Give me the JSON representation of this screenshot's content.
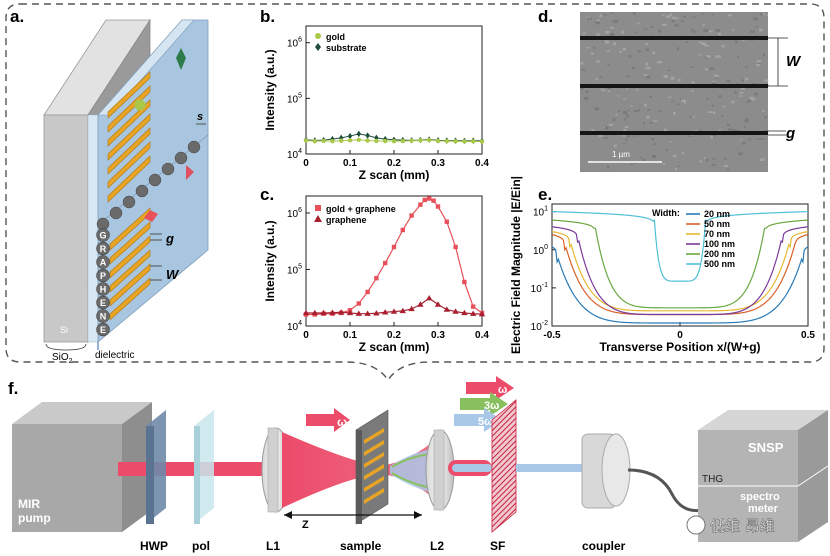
{
  "panels": {
    "a": "a.",
    "b": "b.",
    "c": "c.",
    "d": "d.",
    "e": "e.",
    "f": "f."
  },
  "panel_a": {
    "letters": [
      "G",
      "R",
      "A",
      "P",
      "H",
      "E",
      "N",
      "E"
    ],
    "label_s": "s",
    "label_g": "g",
    "label_w": "W",
    "label_si": "Si",
    "label_sio2": "SiO",
    "label_sio2_sub": "2",
    "label_dielectric": "dielectric",
    "colors": {
      "gold": "#e8a424",
      "slab": "#a9c6e0",
      "gray": "#bdbdbd"
    }
  },
  "panel_d": {
    "scale_bar": "1 µm",
    "label_w": "W",
    "label_g": "g"
  },
  "panel_f": {
    "labels": {
      "mir_pump": [
        "MIR",
        "pump"
      ],
      "hwp": "HWP",
      "pol": "pol",
      "l1": "L1",
      "sample": "sample",
      "l2": "L2",
      "sf": "SF",
      "coupler": "coupler",
      "snsp": "SNSP",
      "thg": "THG",
      "spectro": [
        "spectro",
        "meter"
      ],
      "z": "Z",
      "omega_in": "ω",
      "omega_out": "ω",
      "three_omega": "3ω",
      "five_omega": "5ω",
      "watermark": "低维 昂维"
    },
    "colors": {
      "beam": "#ec4b6a",
      "thg": "#88c060",
      "fifth": "#a9c8e8"
    }
  },
  "chart_data": [
    {
      "id": "b",
      "type": "scatter",
      "title": "",
      "xlabel": "Z scan (mm)",
      "ylabel": "Intensity (a.u.)",
      "xlim": [
        0,
        0.4
      ],
      "ylim_log10": [
        4,
        6.3
      ],
      "xticks": [
        "0",
        "0.1",
        "0.2",
        "0.3",
        "0.4"
      ],
      "yticks": [
        {
          "base": "10",
          "exp": "4",
          "v": 4
        },
        {
          "base": "10",
          "exp": "5",
          "v": 5
        },
        {
          "base": "10",
          "exp": "6",
          "v": 6
        }
      ],
      "legend": [
        "gold",
        "substrate"
      ],
      "series": [
        {
          "name": "substrate",
          "color": "#1f4f3a",
          "marker": "diamond",
          "x": [
            0.0,
            0.02,
            0.04,
            0.06,
            0.08,
            0.1,
            0.12,
            0.14,
            0.16,
            0.18,
            0.2,
            0.22,
            0.24,
            0.26,
            0.28,
            0.3,
            0.32,
            0.34,
            0.36,
            0.38,
            0.4
          ],
          "y": [
            18000,
            17500,
            17800,
            18500,
            19500,
            21000,
            23000,
            21500,
            19500,
            18500,
            18000,
            17800,
            17600,
            17800,
            18200,
            17600,
            17400,
            17300,
            17200,
            17300,
            17200
          ]
        },
        {
          "name": "gold",
          "color": "#a9c84a",
          "marker": "circle",
          "x": [
            0.0,
            0.02,
            0.04,
            0.06,
            0.08,
            0.1,
            0.12,
            0.14,
            0.16,
            0.18,
            0.2,
            0.22,
            0.24,
            0.26,
            0.28,
            0.3,
            0.32,
            0.34,
            0.36,
            0.38,
            0.4
          ],
          "y": [
            17500,
            17000,
            17200,
            17000,
            17300,
            17600,
            18000,
            17400,
            17200,
            17100,
            17000,
            17100,
            17300,
            17500,
            17800,
            17200,
            17000,
            16900,
            16800,
            16900,
            16700
          ]
        }
      ]
    },
    {
      "id": "c",
      "type": "scatter",
      "title": "",
      "xlabel": "Z scan (mm)",
      "ylabel": "Intensity (a.u.)",
      "xlim": [
        0,
        0.4
      ],
      "ylim_log10": [
        4,
        6.3
      ],
      "xticks": [
        "0",
        "0.1",
        "0.2",
        "0.3",
        "0.4"
      ],
      "yticks": [
        {
          "base": "10",
          "exp": "4",
          "v": 4
        },
        {
          "base": "10",
          "exp": "5",
          "v": 5
        },
        {
          "base": "10",
          "exp": "6",
          "v": 6
        }
      ],
      "legend": [
        "gold + graphene",
        "graphene"
      ],
      "series": [
        {
          "name": "gold + graphene",
          "color": "#e8505a",
          "marker": "square",
          "x": [
            0.0,
            0.02,
            0.04,
            0.06,
            0.08,
            0.1,
            0.12,
            0.14,
            0.16,
            0.18,
            0.2,
            0.22,
            0.24,
            0.26,
            0.27,
            0.28,
            0.29,
            0.3,
            0.32,
            0.34,
            0.36,
            0.38,
            0.4
          ],
          "y": [
            16000,
            16000,
            16500,
            16500,
            17000,
            19000,
            25000,
            40000,
            70000,
            130000,
            250000,
            500000,
            900000,
            1400000,
            1700000,
            1800000,
            1650000,
            1300000,
            700000,
            250000,
            60000,
            22000,
            17000
          ]
        },
        {
          "name": "graphene",
          "color": "#a82030",
          "marker": "triangle",
          "x": [
            0.0,
            0.02,
            0.04,
            0.06,
            0.08,
            0.1,
            0.12,
            0.14,
            0.16,
            0.18,
            0.2,
            0.22,
            0.24,
            0.26,
            0.28,
            0.3,
            0.32,
            0.34,
            0.36,
            0.38,
            0.4
          ],
          "y": [
            17000,
            17000,
            17000,
            17200,
            17500,
            17000,
            16500,
            16500,
            16800,
            17500,
            18000,
            18500,
            20000,
            24000,
            31000,
            24000,
            19500,
            18000,
            17000,
            16500,
            16200
          ]
        }
      ]
    },
    {
      "id": "e",
      "type": "line",
      "title": "",
      "xlabel": "Transverse Position x/(W+g)",
      "ylabel": "Electric Field Magnitude |E/Ein|",
      "xlim": [
        -0.5,
        0.5
      ],
      "ylim_log10": [
        -2,
        1.2
      ],
      "xticks": [
        "-0.5",
        "0",
        "0.5"
      ],
      "yticks": [
        {
          "base": "10",
          "exp": "-2",
          "v": -2
        },
        {
          "base": "10",
          "exp": "-1",
          "v": -1
        },
        {
          "base": "10",
          "exp": "0",
          "v": 0
        },
        {
          "base": "10",
          "exp": "1",
          "v": 1
        }
      ],
      "legend_title": "Width:",
      "series": [
        {
          "name": "20 nm",
          "color": "#2a7ab8",
          "edge": 0.48,
          "peak": 1.2,
          "floor": 0.012
        },
        {
          "name": "50 nm",
          "color": "#d9622a",
          "edge": 0.45,
          "peak": 2.5,
          "floor": 0.02
        },
        {
          "name": "70 nm",
          "color": "#e8b830",
          "edge": 0.43,
          "peak": 3.0,
          "floor": 0.025
        },
        {
          "name": "100 nm",
          "color": "#7a3a9a",
          "edge": 0.4,
          "peak": 4.0,
          "floor": 0.02
        },
        {
          "name": "200 nm",
          "color": "#6aa840",
          "edge": 0.33,
          "peak": 6.0,
          "floor": 0.03
        },
        {
          "name": "500 nm",
          "color": "#50c0d8",
          "edge": 0.1,
          "peak": 10.0,
          "floor": 0.15
        }
      ]
    }
  ]
}
